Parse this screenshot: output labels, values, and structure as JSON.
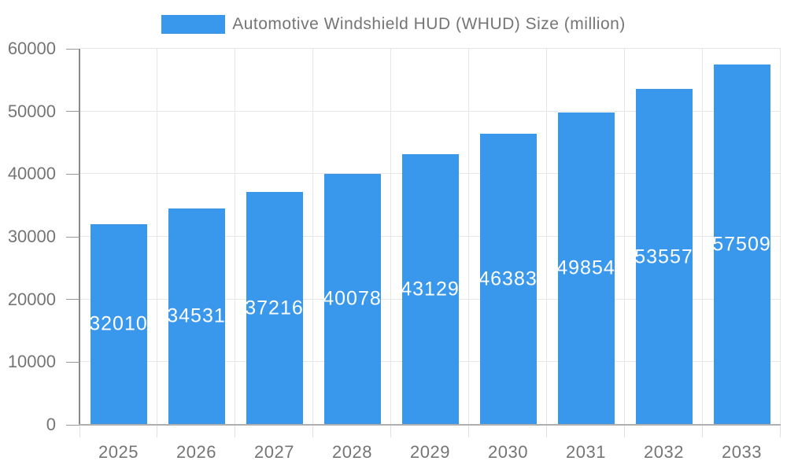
{
  "legend": {
    "label": "Automotive Windshield HUD (WHUD) Size (million)"
  },
  "chart_data": {
    "type": "bar",
    "title": "Automotive Windshield HUD (WHUD) Size (million)",
    "categories": [
      "2025",
      "2026",
      "2027",
      "2028",
      "2029",
      "2030",
      "2031",
      "2032",
      "2033"
    ],
    "values": [
      32010,
      34531,
      37216,
      40078,
      43129,
      46383,
      49854,
      53557,
      57509
    ],
    "xlabel": "",
    "ylabel": "",
    "ylim": [
      0,
      60000
    ],
    "yticks": [
      0,
      10000,
      20000,
      30000,
      40000,
      50000,
      60000
    ],
    "grid": true,
    "legend_position": "top-center",
    "colors": {
      "bar": "#3998EC",
      "bar_label": "#FFFFFF",
      "axis_text": "#757575",
      "title_text": "#757575",
      "gridline": "#E6E6E6",
      "axis_line": "#8A8A8A",
      "baseline": "#AFAFAF",
      "tick": "#999999",
      "below_tick": "#E0E0E0",
      "background": "#FFFFFF"
    }
  }
}
